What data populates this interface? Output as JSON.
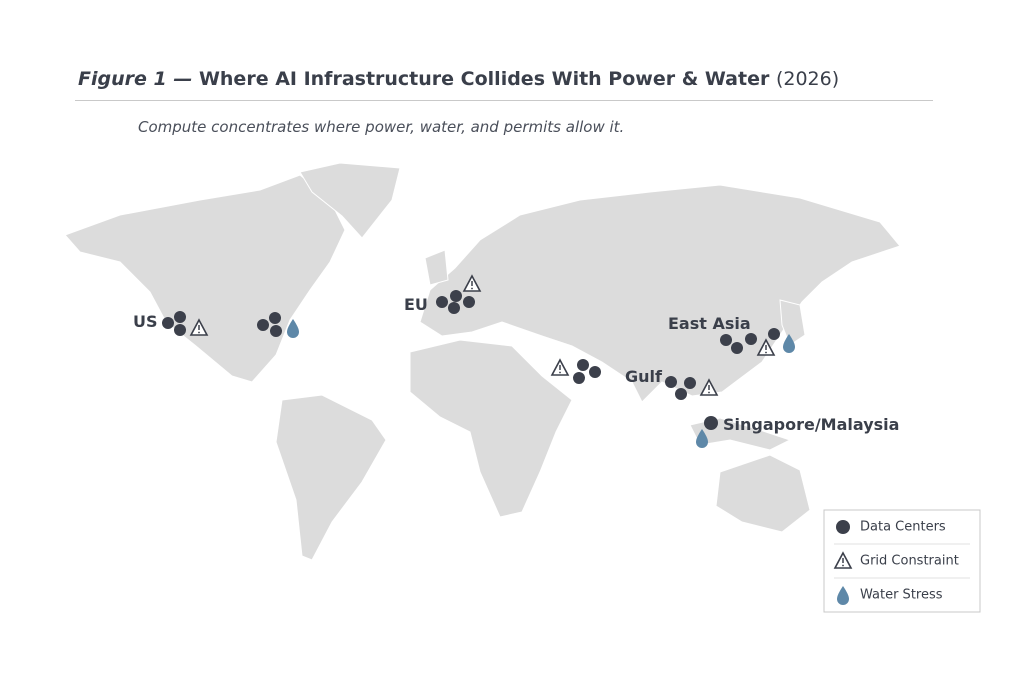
{
  "figure": {
    "label": "Figure 1 —",
    "title": "Where AI Infrastructure Collides With Power & Water",
    "year": "(2026)",
    "subtitle": "Compute concentrates where power, water, and permits allow it."
  },
  "regions": [
    {
      "label": "US"
    },
    {
      "label": "EU"
    },
    {
      "label": "Gulf"
    },
    {
      "label": "East Asia"
    },
    {
      "label": "Singapore/Malaysia"
    }
  ],
  "legend": [
    {
      "label": "Data Centers"
    },
    {
      "label": "Grid Constraint"
    },
    {
      "label": "Water Stress"
    }
  ]
}
